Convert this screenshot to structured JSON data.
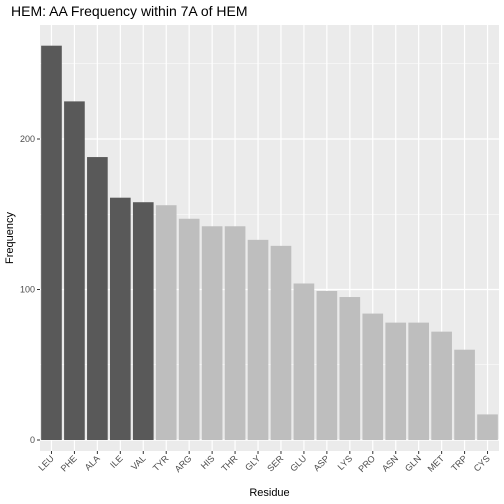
{
  "chart_data": {
    "type": "bar",
    "title": "HEM: AA Frequency within 7A of HEM",
    "xlabel": "Residue",
    "ylabel": "Frequency",
    "categories": [
      "LEU",
      "PHE",
      "ALA",
      "ILE",
      "VAL",
      "TYR",
      "ARG",
      "HIS",
      "THR",
      "GLY",
      "SER",
      "GLU",
      "ASP",
      "LYS",
      "PRO",
      "ASN",
      "GLN",
      "MET",
      "TRP",
      "CYS"
    ],
    "values": [
      262,
      225,
      188,
      161,
      158,
      156,
      147,
      142,
      142,
      133,
      129,
      104,
      99,
      95,
      84,
      78,
      78,
      72,
      60,
      17
    ],
    "highlight_count": 5,
    "ylim": [
      0,
      275
    ],
    "y_ticks": [
      0,
      100,
      200
    ],
    "colors": {
      "highlight": "#595959",
      "normal": "#bebebe",
      "panel": "#ebebeb",
      "grid": "#ffffff"
    },
    "grid": true,
    "legend": "none"
  }
}
